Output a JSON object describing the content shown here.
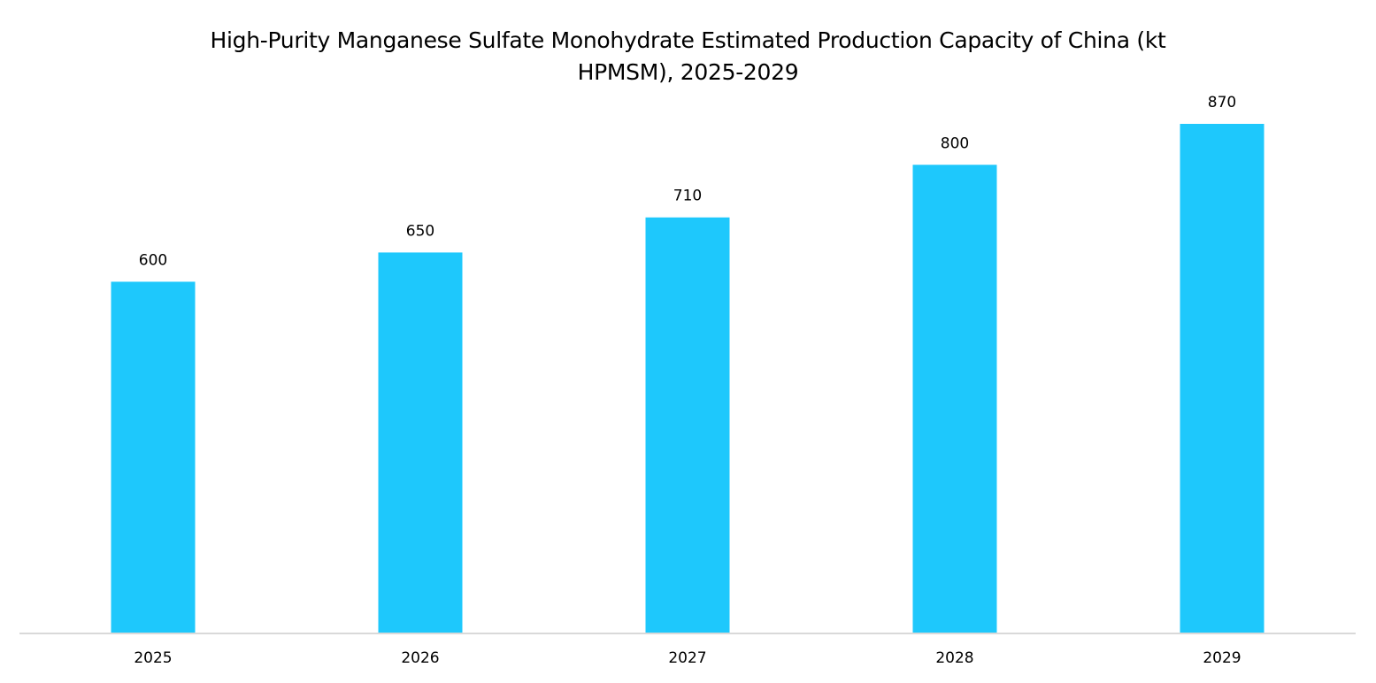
{
  "chart_data": {
    "type": "bar",
    "title": "High-Purity Manganese Sulfate Monohydrate Estimated Production Capacity of China (kt HPMSM), 2025-2029",
    "categories": [
      "2025",
      "2026",
      "2027",
      "2028",
      "2029"
    ],
    "values": [
      600,
      650,
      710,
      800,
      870
    ],
    "color": "#1ec8fc"
  }
}
